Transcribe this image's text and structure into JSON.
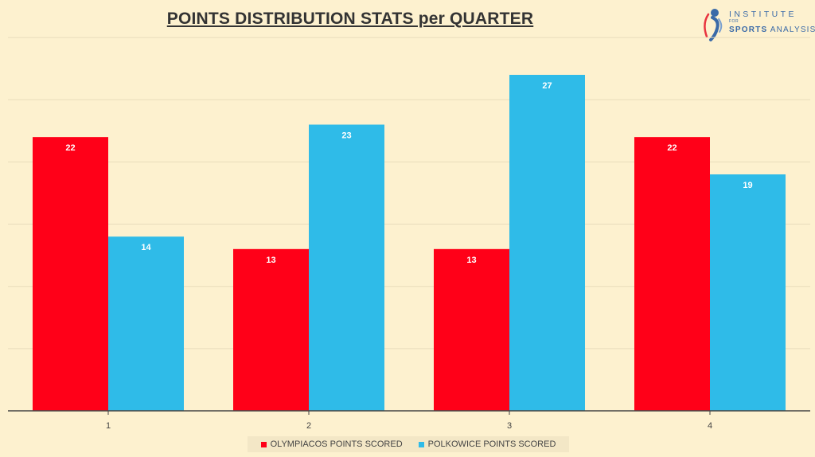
{
  "chart_data": {
    "type": "bar",
    "title": "POINTS DISTRIBUTION STATS per QUARTER",
    "categories": [
      "1",
      "2",
      "3",
      "4"
    ],
    "series": [
      {
        "name": "OLYMPIACOS POINTS SCORED",
        "values": [
          22,
          13,
          13,
          22
        ],
        "color": "#ff0018"
      },
      {
        "name": "POLKOWICE POINTS SCORED",
        "values": [
          14,
          23,
          27,
          19
        ],
        "color": "#2fbbe8"
      }
    ],
    "ylim": [
      0,
      27
    ],
    "grid": true,
    "legend": "bottom",
    "data_labels": true
  },
  "logo": {
    "line1": "INSTITUTE",
    "line2": "FOR",
    "line3_bold": "SPORTS",
    "line3": "ANALYSIS",
    "icon": "runner-icon"
  }
}
